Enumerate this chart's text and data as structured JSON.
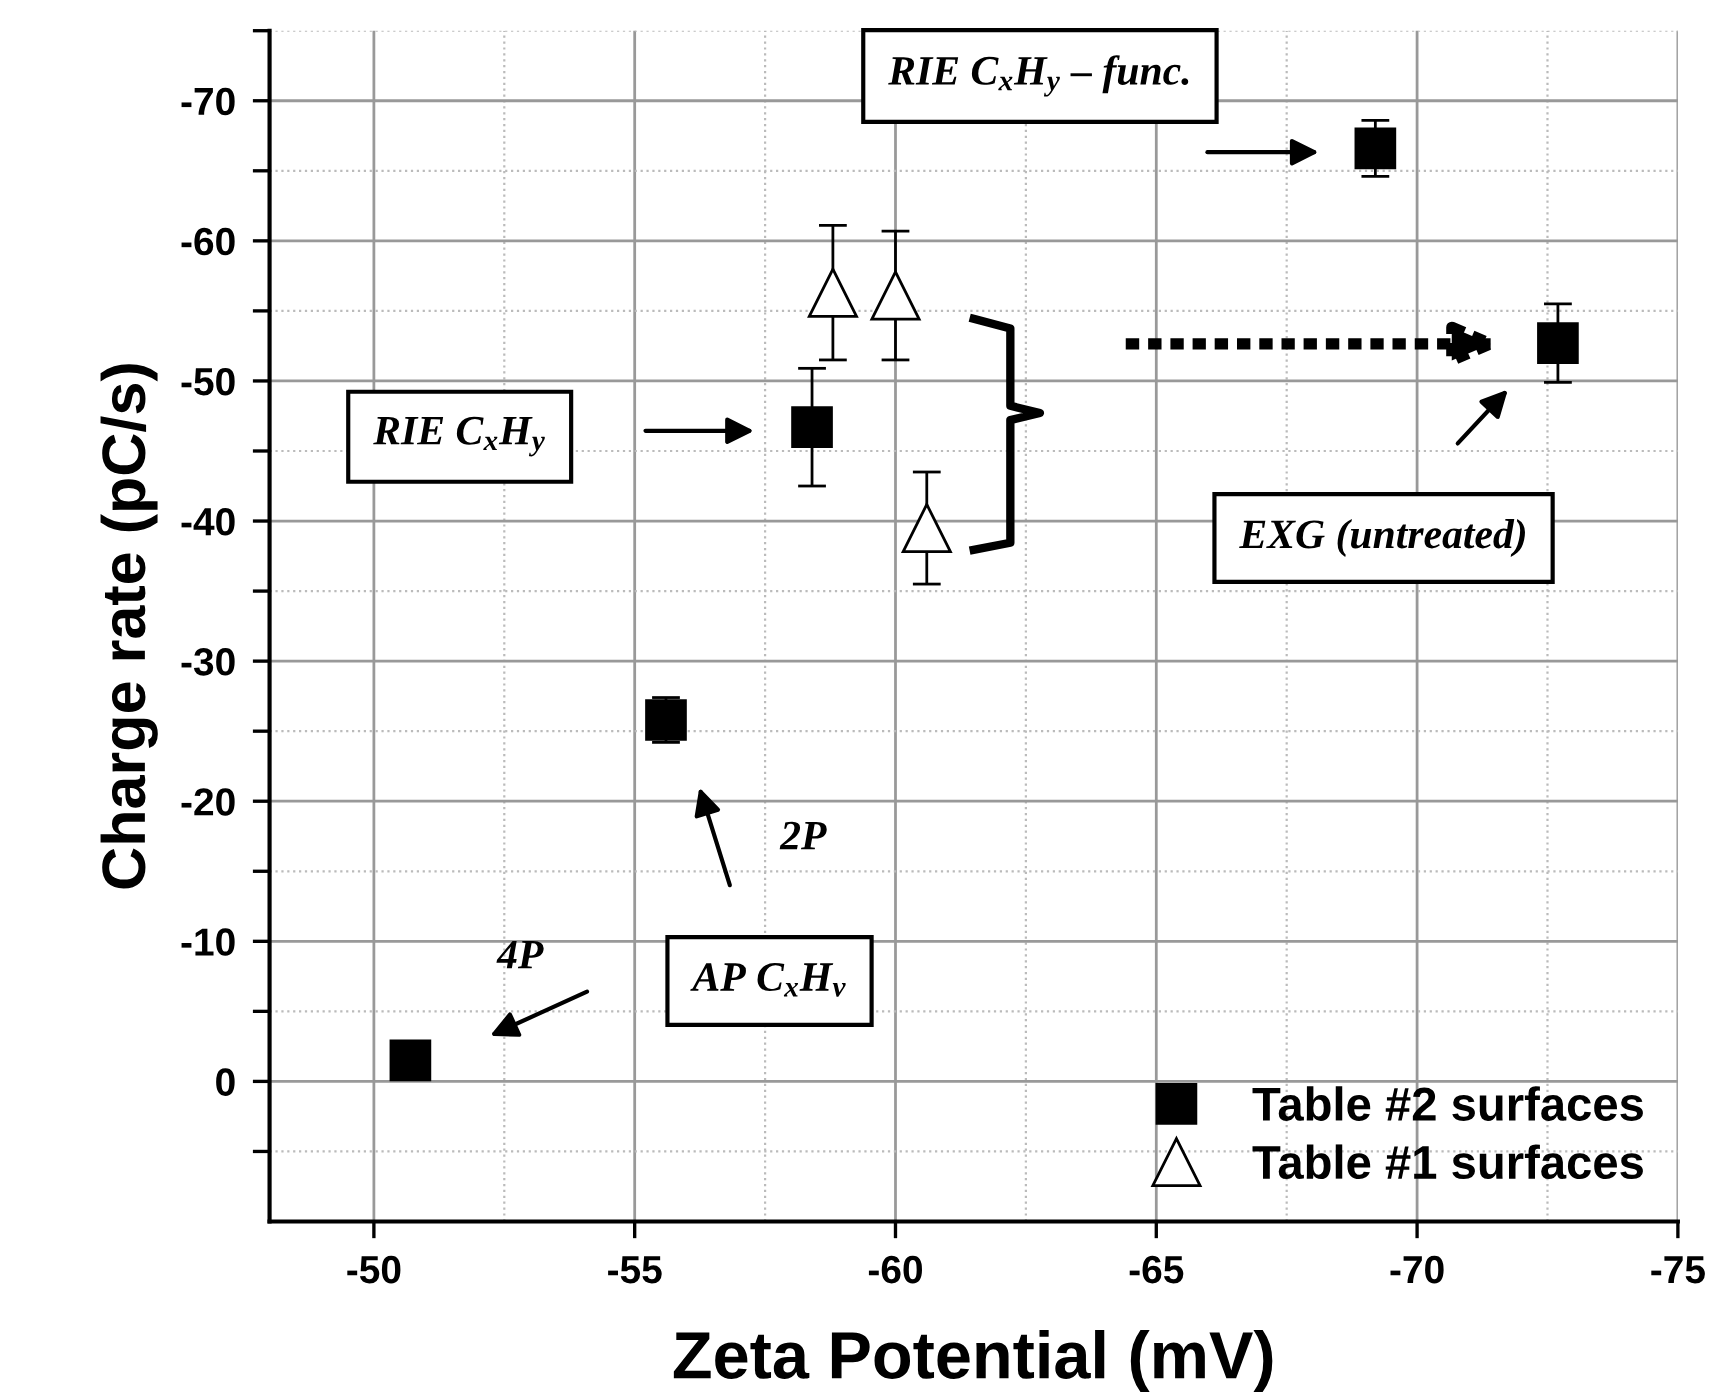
{
  "chart_data": {
    "type": "scatter",
    "xlabel": "Zeta Potential (mV)",
    "ylabel": "Charge rate (pC/s)",
    "xlim": [
      -48,
      -75
    ],
    "xticks": [
      -50,
      -55,
      -60,
      -65,
      -70,
      -75
    ],
    "ylim": [
      10,
      -75
    ],
    "yticks": [
      0,
      -10,
      -20,
      -30,
      -40,
      -50,
      -60,
      -70
    ],
    "grid": true,
    "legend": "bottom right",
    "series": [
      {
        "name": "Table #2 surfaces",
        "color": "#000000",
        "marker": "square",
        "x": [
          -50.7,
          -55.6,
          -58.4,
          -69.2,
          -72.7
        ],
        "values": [
          -1.5,
          -25.8,
          -46.7,
          -66.6,
          -52.7
        ],
        "errors": [
          null,
          1.6,
          4.2,
          2,
          2.8
        ]
      },
      {
        "name": "Table #1 surfaces",
        "color": "#ffffff",
        "marker": "triangle",
        "x": [
          -58.8,
          -60.0,
          -60.6
        ],
        "values": [
          -56.3,
          -56.1,
          -39.5
        ],
        "errors": [
          4.8,
          4.6,
          4
        ]
      }
    ],
    "annotations": [
      "RIE C$_{x}$H$_{y}$",
      "RIE C$_{x}$H$_{y}$ – func.",
      "EXG (untreated)",
      "2P",
      "4P",
      "AP C$_{x}$H$_{v}$"
    ]
  }
}
